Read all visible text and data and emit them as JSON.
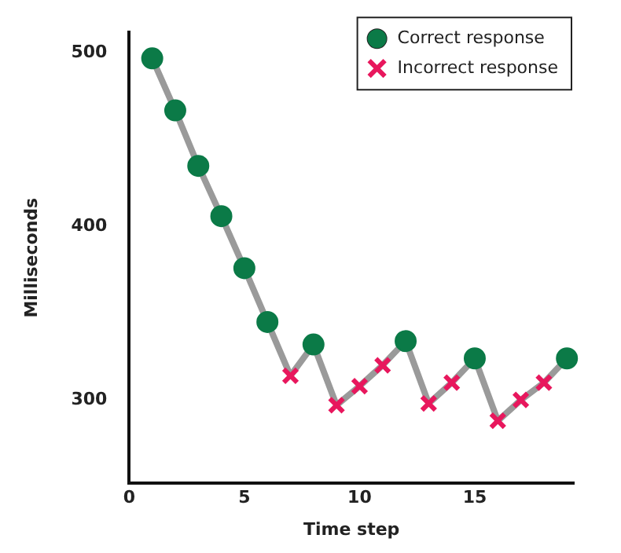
{
  "chart_data": {
    "type": "line",
    "xlabel": "Time step",
    "ylabel": "Milliseconds",
    "xlim": [
      0,
      19.3
    ],
    "xticks": [
      0,
      5,
      10,
      15
    ],
    "ylim": [
      252,
      512
    ],
    "yticks": [
      300,
      400,
      500
    ],
    "grid": false,
    "legend": "top right",
    "series": [
      {
        "type": "line",
        "color": "#9a9a9a",
        "marker": "none",
        "x": [
          1,
          2,
          3,
          4,
          5,
          6,
          7,
          8,
          9,
          10,
          11,
          12,
          13,
          14,
          15,
          16,
          17,
          18,
          19
        ],
        "values": [
          497,
          467,
          435,
          406,
          376,
          345,
          314,
          332,
          297,
          308,
          320,
          334,
          298,
          310,
          324,
          288,
          300,
          310,
          324
        ]
      },
      {
        "type": "scatter",
        "name": "Correct response",
        "color": "#0b7a47",
        "marker": "circle",
        "x": [
          1,
          2,
          3,
          4,
          5,
          6,
          8,
          12,
          15,
          19
        ],
        "values": [
          497,
          467,
          435,
          406,
          376,
          345,
          332,
          334,
          324,
          324
        ]
      },
      {
        "type": "scatter",
        "name": "Incorrect response",
        "color": "#e8175d",
        "marker": "cross",
        "x": [
          7,
          9,
          10,
          11,
          13,
          14,
          16,
          17,
          18
        ],
        "values": [
          314,
          297,
          308,
          320,
          298,
          310,
          288,
          300,
          310
        ]
      }
    ]
  }
}
